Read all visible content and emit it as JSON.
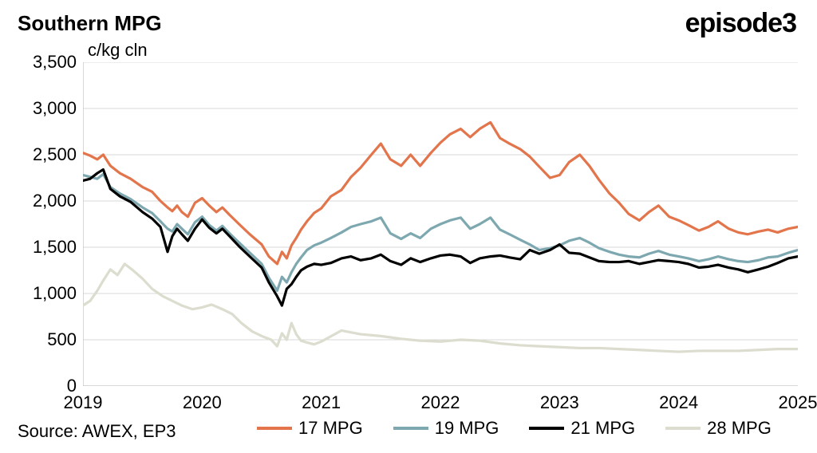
{
  "chart": {
    "type": "line",
    "title": "Southern MPG",
    "brand": "episode3",
    "ylabel": "c/kg cln",
    "source": "Source: AWEX, EP3",
    "background_color": "#ffffff",
    "grid_color": "#d9d9d9",
    "axis_color": "#bfbfbf",
    "line_width": 3.2,
    "title_fontsize": 26,
    "label_fontsize": 22,
    "tick_fontsize": 22,
    "xlim": [
      2019,
      2025
    ],
    "ylim": [
      0,
      3500
    ],
    "ytick_step": 500,
    "yticks": [
      0,
      500,
      1000,
      1500,
      2000,
      2500,
      3000,
      3500
    ],
    "ytick_labels": [
      "0",
      "500",
      "1,000",
      "1,500",
      "2,000",
      "2,500",
      "3,000",
      "3,500"
    ],
    "xticks": [
      2019,
      2020,
      2021,
      2022,
      2023,
      2024,
      2025
    ],
    "xtick_labels": [
      "2019",
      "2020",
      "2021",
      "2022",
      "2023",
      "2024",
      "2025"
    ],
    "series": [
      {
        "label": "17 MPG",
        "color": "#e2754b",
        "x": [
          2019.0,
          2019.06,
          2019.12,
          2019.17,
          2019.23,
          2019.31,
          2019.4,
          2019.5,
          2019.58,
          2019.65,
          2019.71,
          2019.75,
          2019.79,
          2019.83,
          2019.88,
          2019.94,
          2020.0,
          2020.06,
          2020.12,
          2020.17,
          2020.23,
          2020.31,
          2020.4,
          2020.5,
          2020.56,
          2020.63,
          2020.67,
          2020.71,
          2020.75,
          2020.79,
          2020.83,
          2020.88,
          2020.94,
          2021.0,
          2021.08,
          2021.17,
          2021.25,
          2021.33,
          2021.42,
          2021.5,
          2021.58,
          2021.67,
          2021.75,
          2021.83,
          2021.92,
          2022.0,
          2022.08,
          2022.17,
          2022.25,
          2022.33,
          2022.42,
          2022.5,
          2022.58,
          2022.67,
          2022.75,
          2022.83,
          2022.92,
          2023.0,
          2023.08,
          2023.17,
          2023.25,
          2023.33,
          2023.42,
          2023.5,
          2023.58,
          2023.67,
          2023.75,
          2023.83,
          2023.92,
          2024.0,
          2024.08,
          2024.17,
          2024.25,
          2024.33,
          2024.42,
          2024.5,
          2024.58,
          2024.67,
          2024.75,
          2024.83,
          2024.92,
          2025.0
        ],
        "y": [
          2520,
          2490,
          2450,
          2500,
          2380,
          2300,
          2240,
          2150,
          2100,
          2000,
          1930,
          1890,
          1950,
          1880,
          1830,
          1980,
          2030,
          1950,
          1880,
          1930,
          1850,
          1750,
          1640,
          1530,
          1400,
          1320,
          1450,
          1380,
          1520,
          1600,
          1690,
          1780,
          1870,
          1920,
          2050,
          2120,
          2260,
          2360,
          2500,
          2620,
          2450,
          2380,
          2500,
          2380,
          2520,
          2630,
          2720,
          2780,
          2690,
          2780,
          2850,
          2680,
          2620,
          2560,
          2480,
          2370,
          2250,
          2280,
          2420,
          2500,
          2380,
          2230,
          2080,
          1980,
          1860,
          1790,
          1880,
          1950,
          1830,
          1790,
          1740,
          1680,
          1720,
          1780,
          1700,
          1660,
          1640,
          1670,
          1690,
          1660,
          1700,
          1720
        ]
      },
      {
        "label": "19 MPG",
        "color": "#7ea8b0",
        "x": [
          2019.0,
          2019.06,
          2019.12,
          2019.17,
          2019.23,
          2019.31,
          2019.4,
          2019.5,
          2019.58,
          2019.65,
          2019.71,
          2019.75,
          2019.79,
          2019.83,
          2019.88,
          2019.94,
          2020.0,
          2020.06,
          2020.12,
          2020.17,
          2020.23,
          2020.31,
          2020.4,
          2020.5,
          2020.56,
          2020.63,
          2020.67,
          2020.71,
          2020.75,
          2020.79,
          2020.83,
          2020.88,
          2020.94,
          2021.0,
          2021.08,
          2021.17,
          2021.25,
          2021.33,
          2021.42,
          2021.5,
          2021.58,
          2021.67,
          2021.75,
          2021.83,
          2021.92,
          2022.0,
          2022.08,
          2022.17,
          2022.25,
          2022.33,
          2022.42,
          2022.5,
          2022.58,
          2022.67,
          2022.75,
          2022.83,
          2022.92,
          2023.0,
          2023.08,
          2023.17,
          2023.25,
          2023.33,
          2023.42,
          2023.5,
          2023.58,
          2023.67,
          2023.75,
          2023.83,
          2023.92,
          2024.0,
          2024.08,
          2024.17,
          2024.25,
          2024.33,
          2024.42,
          2024.5,
          2024.58,
          2024.67,
          2024.75,
          2024.83,
          2024.92,
          2025.0
        ],
        "y": [
          2280,
          2260,
          2240,
          2290,
          2150,
          2080,
          2020,
          1930,
          1870,
          1780,
          1700,
          1670,
          1750,
          1700,
          1640,
          1770,
          1830,
          1740,
          1680,
          1730,
          1650,
          1550,
          1440,
          1320,
          1170,
          1030,
          1180,
          1120,
          1230,
          1320,
          1390,
          1470,
          1520,
          1550,
          1600,
          1660,
          1720,
          1750,
          1780,
          1820,
          1650,
          1590,
          1650,
          1600,
          1700,
          1750,
          1790,
          1820,
          1700,
          1750,
          1820,
          1690,
          1640,
          1580,
          1530,
          1470,
          1490,
          1520,
          1570,
          1600,
          1550,
          1490,
          1450,
          1420,
          1400,
          1390,
          1430,
          1460,
          1420,
          1400,
          1380,
          1350,
          1370,
          1400,
          1370,
          1350,
          1340,
          1360,
          1390,
          1400,
          1440,
          1470
        ]
      },
      {
        "label": "21 MPG",
        "color": "#000000",
        "x": [
          2019.0,
          2019.06,
          2019.12,
          2019.17,
          2019.23,
          2019.31,
          2019.4,
          2019.5,
          2019.58,
          2019.65,
          2019.71,
          2019.75,
          2019.79,
          2019.83,
          2019.88,
          2019.94,
          2020.0,
          2020.06,
          2020.12,
          2020.17,
          2020.23,
          2020.31,
          2020.4,
          2020.5,
          2020.56,
          2020.63,
          2020.67,
          2020.71,
          2020.75,
          2020.79,
          2020.83,
          2020.88,
          2020.94,
          2021.0,
          2021.08,
          2021.17,
          2021.25,
          2021.33,
          2021.42,
          2021.5,
          2021.58,
          2021.67,
          2021.75,
          2021.83,
          2021.92,
          2022.0,
          2022.08,
          2022.17,
          2022.25,
          2022.33,
          2022.42,
          2022.5,
          2022.58,
          2022.67,
          2022.75,
          2022.83,
          2022.92,
          2023.0,
          2023.08,
          2023.17,
          2023.25,
          2023.33,
          2023.42,
          2023.5,
          2023.58,
          2023.67,
          2023.75,
          2023.83,
          2023.92,
          2024.0,
          2024.08,
          2024.17,
          2024.25,
          2024.33,
          2024.42,
          2024.5,
          2024.58,
          2024.67,
          2024.75,
          2024.83,
          2024.92,
          2025.0
        ],
        "y": [
          2220,
          2240,
          2300,
          2340,
          2130,
          2050,
          1990,
          1880,
          1810,
          1720,
          1450,
          1620,
          1700,
          1640,
          1570,
          1700,
          1800,
          1710,
          1650,
          1700,
          1620,
          1510,
          1400,
          1280,
          1120,
          970,
          870,
          1050,
          1100,
          1180,
          1250,
          1290,
          1320,
          1310,
          1330,
          1380,
          1400,
          1360,
          1380,
          1420,
          1350,
          1310,
          1380,
          1340,
          1380,
          1410,
          1420,
          1400,
          1330,
          1380,
          1400,
          1410,
          1390,
          1370,
          1470,
          1430,
          1470,
          1530,
          1440,
          1430,
          1390,
          1350,
          1340,
          1340,
          1350,
          1320,
          1340,
          1360,
          1350,
          1340,
          1320,
          1280,
          1290,
          1310,
          1280,
          1260,
          1230,
          1260,
          1290,
          1330,
          1380,
          1400
        ]
      },
      {
        "label": "28 MPG",
        "color": "#dcdccf",
        "x": [
          2019.0,
          2019.06,
          2019.12,
          2019.17,
          2019.23,
          2019.29,
          2019.35,
          2019.42,
          2019.5,
          2019.58,
          2019.67,
          2019.75,
          2019.83,
          2019.92,
          2020.0,
          2020.08,
          2020.17,
          2020.25,
          2020.33,
          2020.42,
          2020.5,
          2020.58,
          2020.63,
          2020.67,
          2020.71,
          2020.75,
          2020.79,
          2020.83,
          2020.88,
          2020.94,
          2021.0,
          2021.17,
          2021.33,
          2021.5,
          2021.67,
          2021.83,
          2022.0,
          2022.17,
          2022.33,
          2022.5,
          2022.67,
          2022.83,
          2023.0,
          2023.17,
          2023.33,
          2023.5,
          2023.67,
          2023.83,
          2024.0,
          2024.17,
          2024.33,
          2024.5,
          2024.67,
          2024.83,
          2025.0
        ],
        "y": [
          870,
          920,
          1030,
          1140,
          1260,
          1200,
          1320,
          1250,
          1160,
          1050,
          970,
          920,
          870,
          830,
          850,
          880,
          830,
          780,
          680,
          590,
          540,
          500,
          430,
          570,
          500,
          680,
          560,
          490,
          470,
          450,
          480,
          600,
          560,
          540,
          510,
          490,
          480,
          500,
          490,
          460,
          440,
          430,
          420,
          410,
          410,
          400,
          390,
          380,
          370,
          380,
          380,
          380,
          390,
          400,
          400
        ]
      }
    ]
  }
}
